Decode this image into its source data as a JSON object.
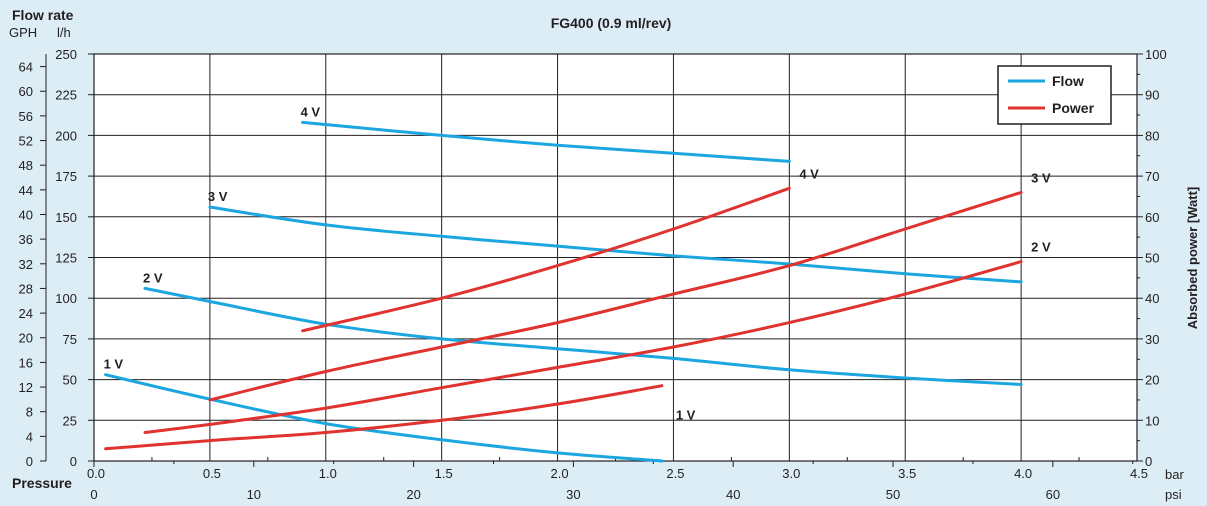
{
  "chart_data": {
    "type": "line",
    "title": "FG400 (0.9 ml/rev)",
    "flow_axis_title": "Flow rate",
    "gph_unit": "GPH",
    "lh_unit": "l/h",
    "x_axis_title": "Pressure",
    "bar_unit": "bar",
    "psi_unit": "psi",
    "right_axis_title": "Absorbed power [Watt]",
    "xlim": [
      0,
      4.5
    ],
    "y_lh_lim": [
      0,
      250
    ],
    "y_power_lim": [
      0,
      100
    ],
    "x_ticks_bar": [
      "0.0",
      "0.5",
      "1.0",
      "1.5",
      "2.0",
      "2.5",
      "3.0",
      "3.5",
      "4.0",
      "4.5"
    ],
    "x_ticks_psi": [
      "0",
      "10",
      "20",
      "30",
      "40",
      "50",
      "60"
    ],
    "y_ticks_lh": [
      "0",
      "25",
      "50",
      "75",
      "100",
      "125",
      "150",
      "175",
      "200",
      "225",
      "250"
    ],
    "y_ticks_gph": [
      "0",
      "4",
      "8",
      "12",
      "16",
      "20",
      "24",
      "28",
      "32",
      "36",
      "40",
      "44",
      "48",
      "52",
      "56",
      "60",
      "64"
    ],
    "y_ticks_power": [
      "0",
      "10",
      "20",
      "30",
      "40",
      "50",
      "60",
      "70",
      "80",
      "90",
      "100"
    ],
    "legend": [
      {
        "name": "Flow",
        "color": "#1ba6e0"
      },
      {
        "name": "Power",
        "color": "#e0322e"
      }
    ],
    "legend_position": "top-right",
    "grid": true,
    "series": [
      {
        "kind": "flow",
        "label": "1 V",
        "x": [
          0.05,
          0.5,
          1.0,
          1.5,
          2.0,
          2.45
        ],
        "y": [
          53,
          38,
          23,
          13,
          5,
          0
        ]
      },
      {
        "kind": "flow",
        "label": "2 V",
        "x": [
          0.22,
          0.5,
          1.0,
          1.5,
          2.0,
          2.5,
          3.0,
          3.5,
          4.0
        ],
        "y": [
          106,
          98,
          84,
          75,
          69,
          63,
          56,
          51,
          47
        ]
      },
      {
        "kind": "flow",
        "label": "3 V",
        "x": [
          0.5,
          1.0,
          1.5,
          2.0,
          2.5,
          3.0,
          3.5,
          4.0
        ],
        "y": [
          156,
          145,
          138,
          132,
          126,
          121,
          115,
          110
        ]
      },
      {
        "kind": "flow",
        "label": "4 V",
        "x": [
          0.9,
          1.5,
          2.0,
          2.5,
          3.0
        ],
        "y": [
          208,
          200,
          194,
          189,
          184
        ]
      },
      {
        "kind": "power",
        "label": "1 V",
        "x": [
          0.05,
          0.5,
          1.0,
          1.5,
          2.0,
          2.45
        ],
        "y": [
          3,
          5,
          7,
          10,
          14,
          18.5
        ]
      },
      {
        "kind": "power",
        "label": "2 V",
        "x": [
          0.22,
          0.5,
          1.0,
          1.5,
          2.0,
          2.5,
          3.0,
          3.5,
          4.0
        ],
        "y": [
          7,
          9,
          13,
          18,
          23,
          28,
          34,
          41,
          49
        ]
      },
      {
        "kind": "power",
        "label": "3 V",
        "x": [
          0.5,
          1.0,
          1.5,
          2.0,
          2.5,
          3.0,
          3.5,
          4.0
        ],
        "y": [
          15,
          22,
          28,
          34,
          41,
          48,
          57,
          66
        ]
      },
      {
        "kind": "power",
        "label": "4 V",
        "x": [
          0.9,
          1.5,
          2.0,
          2.5,
          3.0
        ],
        "y": [
          32,
          40,
          48,
          57,
          67
        ]
      }
    ]
  }
}
